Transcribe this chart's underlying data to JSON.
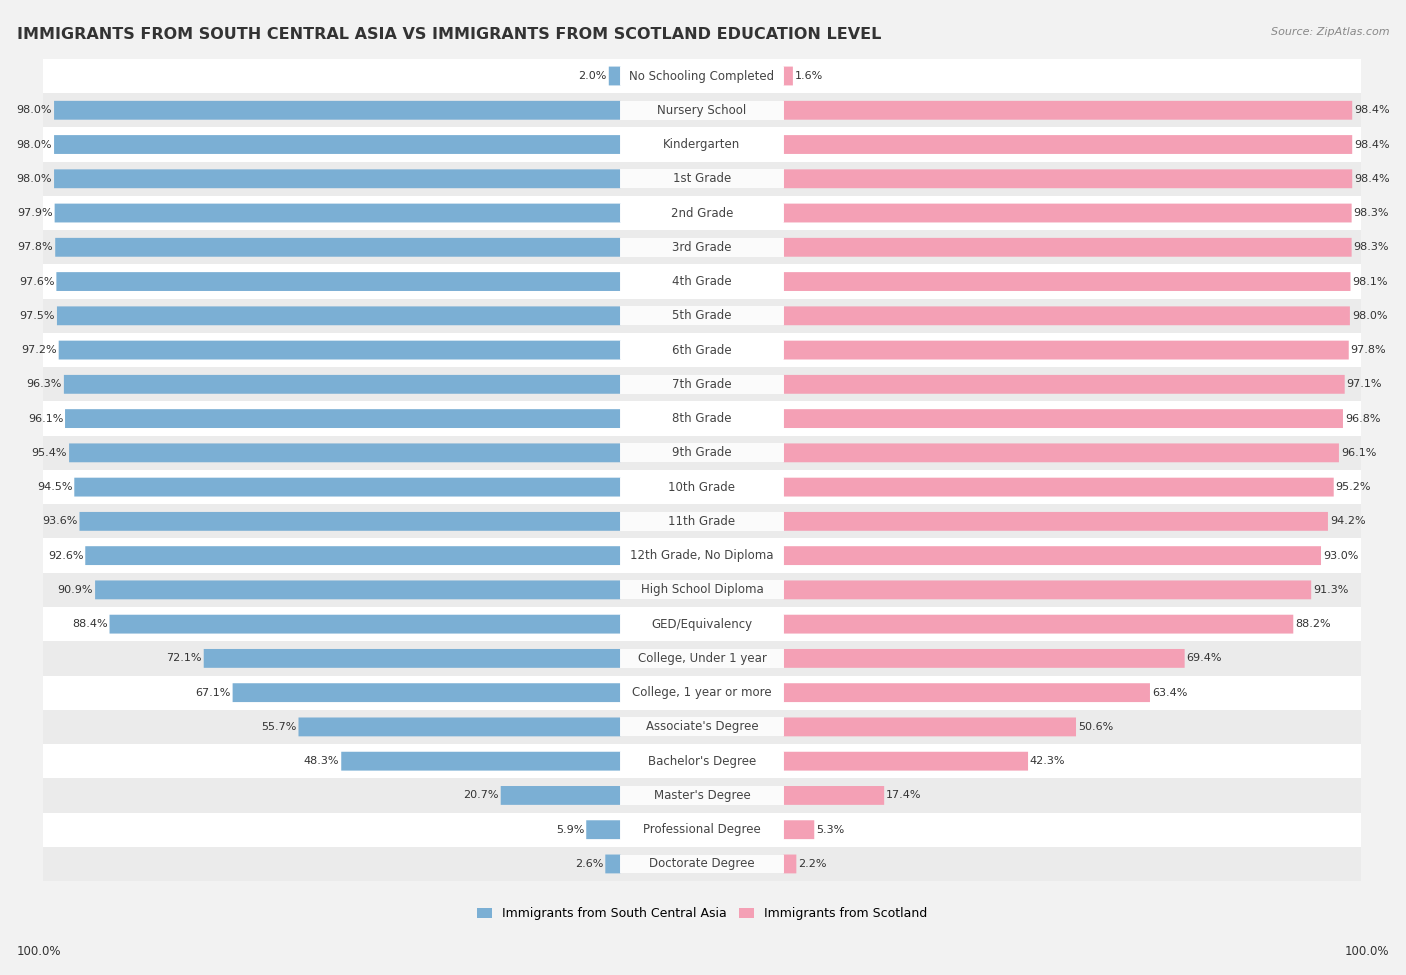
{
  "title": "IMMIGRANTS FROM SOUTH CENTRAL ASIA VS IMMIGRANTS FROM SCOTLAND EDUCATION LEVEL",
  "source": "Source: ZipAtlas.com",
  "categories": [
    "No Schooling Completed",
    "Nursery School",
    "Kindergarten",
    "1st Grade",
    "2nd Grade",
    "3rd Grade",
    "4th Grade",
    "5th Grade",
    "6th Grade",
    "7th Grade",
    "8th Grade",
    "9th Grade",
    "10th Grade",
    "11th Grade",
    "12th Grade, No Diploma",
    "High School Diploma",
    "GED/Equivalency",
    "College, Under 1 year",
    "College, 1 year or more",
    "Associate's Degree",
    "Bachelor's Degree",
    "Master's Degree",
    "Professional Degree",
    "Doctorate Degree"
  ],
  "south_central_asia": [
    2.0,
    98.0,
    98.0,
    98.0,
    97.9,
    97.8,
    97.6,
    97.5,
    97.2,
    96.3,
    96.1,
    95.4,
    94.5,
    93.6,
    92.6,
    90.9,
    88.4,
    72.1,
    67.1,
    55.7,
    48.3,
    20.7,
    5.9,
    2.6
  ],
  "scotland": [
    1.6,
    98.4,
    98.4,
    98.4,
    98.3,
    98.3,
    98.1,
    98.0,
    97.8,
    97.1,
    96.8,
    96.1,
    95.2,
    94.2,
    93.0,
    91.3,
    88.2,
    69.4,
    63.4,
    50.6,
    42.3,
    17.4,
    5.3,
    2.2
  ],
  "color_asia": "#7bafd4",
  "color_scotland": "#f4a0b5",
  "bg_color": "#f2f2f2",
  "row_bg_even": "#ffffff",
  "row_bg_odd": "#ebebeb",
  "title_fontsize": 11.5,
  "label_fontsize": 8.5,
  "value_fontsize": 8.0,
  "legend_label_asia": "Immigrants from South Central Asia",
  "legend_label_scotland": "Immigrants from Scotland",
  "xlim": 105,
  "label_zone": 13,
  "bar_height": 0.55
}
